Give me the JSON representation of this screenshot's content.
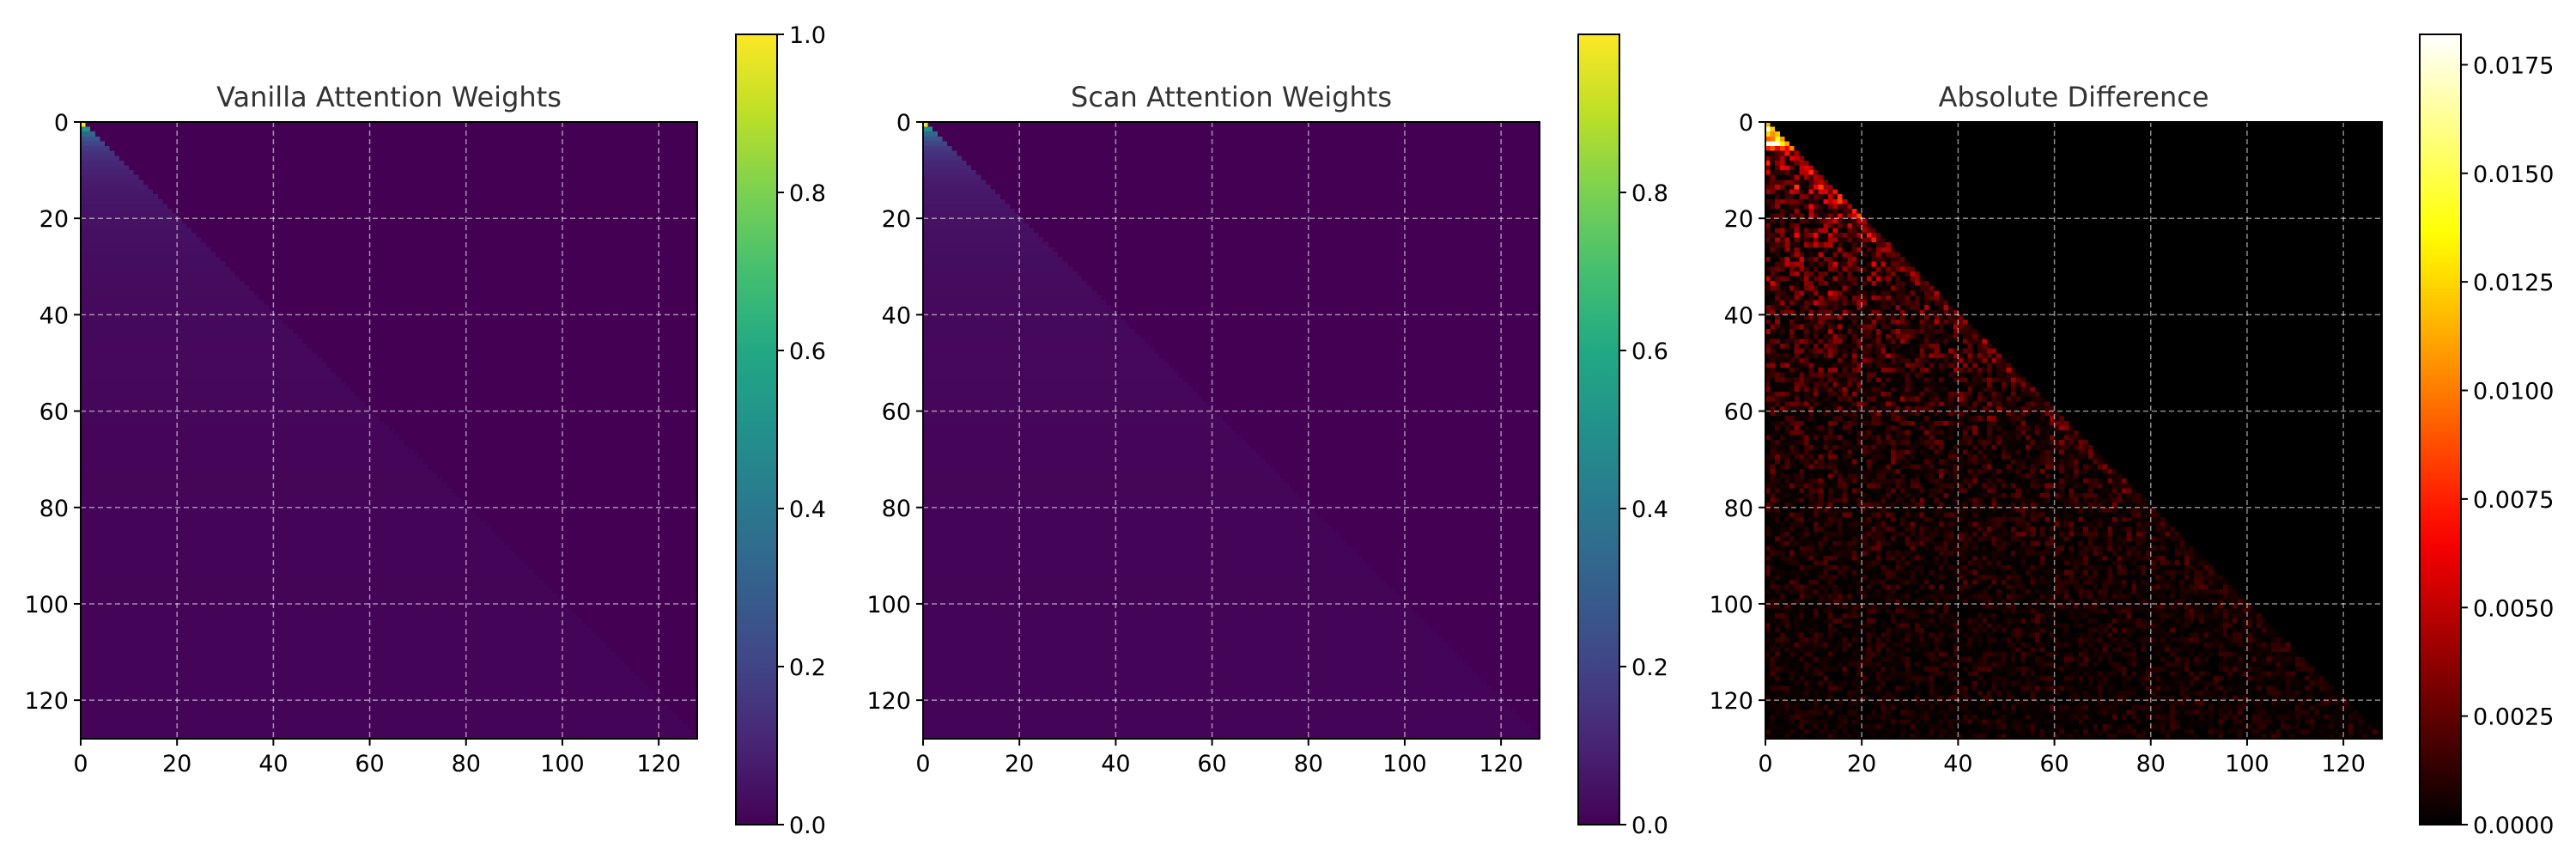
{
  "chart_data": [
    {
      "type": "heatmap",
      "title": "Vanilla Attention Weights",
      "colormap": "viridis",
      "matrix_size": 128,
      "mask": "lower-triangular (causal)",
      "value_rule": "row i holds approximately 1/(i+1) on and below the diagonal, 0 above",
      "x_ticks": [
        "0",
        "20",
        "40",
        "60",
        "80",
        "100",
        "120"
      ],
      "y_ticks": [
        "0",
        "20",
        "40",
        "60",
        "80",
        "100",
        "120"
      ],
      "xlim": [
        0,
        128
      ],
      "ylim": [
        128,
        0
      ],
      "grid": true,
      "colorbar": {
        "range": [
          0.0,
          1.0
        ],
        "ticks": [
          "0.0",
          "0.2",
          "0.4",
          "0.6",
          "0.8",
          "1.0"
        ]
      }
    },
    {
      "type": "heatmap",
      "title": "Scan Attention Weights",
      "colormap": "viridis",
      "matrix_size": 128,
      "mask": "lower-triangular (causal)",
      "value_rule": "row i holds approximately 1/(i+1) on and below the diagonal, 0 above",
      "x_ticks": [
        "0",
        "20",
        "40",
        "60",
        "80",
        "100",
        "120"
      ],
      "y_ticks": [
        "0",
        "20",
        "40",
        "60",
        "80",
        "100",
        "120"
      ],
      "xlim": [
        0,
        128
      ],
      "ylim": [
        128,
        0
      ],
      "grid": true,
      "colorbar": {
        "range": [
          0.0,
          1.0
        ],
        "ticks": [
          "0.0",
          "0.2",
          "0.4",
          "0.6",
          "0.8"
        ]
      }
    },
    {
      "type": "heatmap",
      "title": "Absolute Difference",
      "colormap": "hot",
      "matrix_size": 128,
      "mask": "lower-triangular (causal)",
      "value_rule": "noisy small differences below the diagonal, largest near the top-left corner, brighter along the diagonal",
      "max_value": 0.0182,
      "x_ticks": [
        "0",
        "20",
        "40",
        "60",
        "80",
        "100",
        "120"
      ],
      "y_ticks": [
        "0",
        "20",
        "40",
        "60",
        "80",
        "100",
        "120"
      ],
      "xlim": [
        0,
        128
      ],
      "ylim": [
        128,
        0
      ],
      "grid": true,
      "colorbar": {
        "range": [
          0.0,
          0.0182
        ],
        "ticks": [
          "0.0000",
          "0.0025",
          "0.0050",
          "0.0075",
          "0.0100",
          "0.0125",
          "0.0150",
          "0.0175"
        ]
      }
    }
  ]
}
